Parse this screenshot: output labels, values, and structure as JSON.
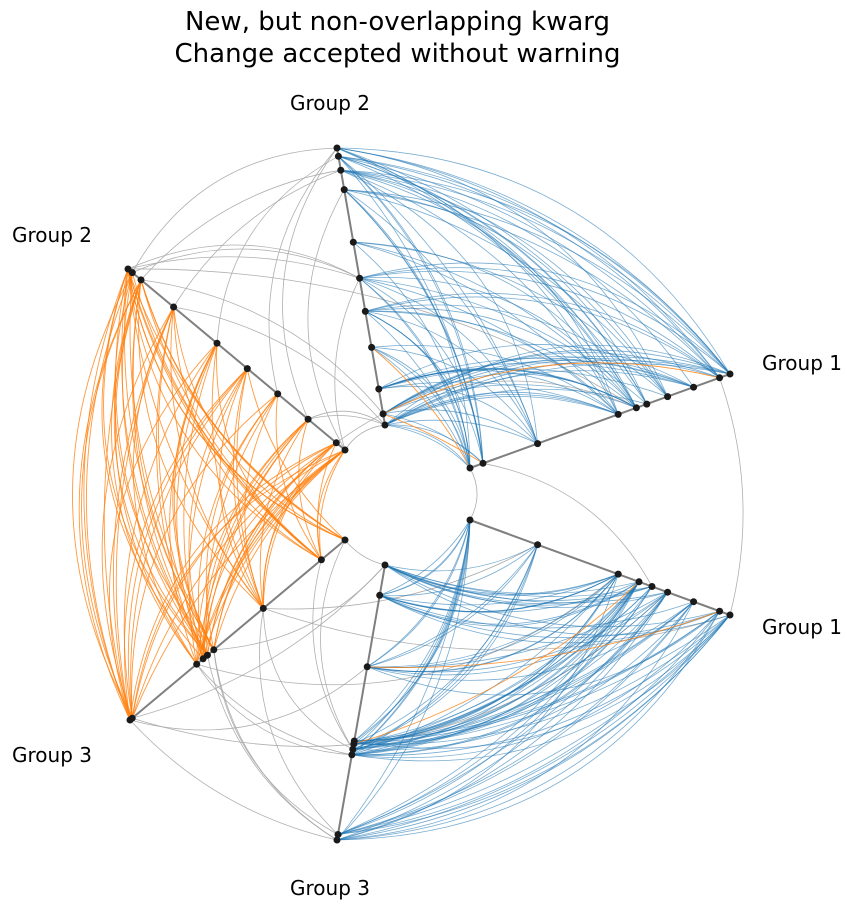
{
  "title": {
    "line1": "New, but non-overlapping kwarg",
    "line2": "Change accepted without warning"
  },
  "diagram": {
    "type": "hive-plot",
    "axis_labels": {
      "sector_a_group1": "Group 1",
      "sector_a_group2": "Group 2",
      "sector_b_group2": "Group 2",
      "sector_b_group3": "Group 3",
      "sector_c_group1": "Group 1",
      "sector_c_group3": "Group 3"
    },
    "colors": {
      "axis": "#7f7f7f",
      "node": "#1a1a1a",
      "blue_edge": "#1f77b4",
      "orange_edge": "#ff7f0e",
      "gray_edge": "#a6a6a6"
    }
  }
}
